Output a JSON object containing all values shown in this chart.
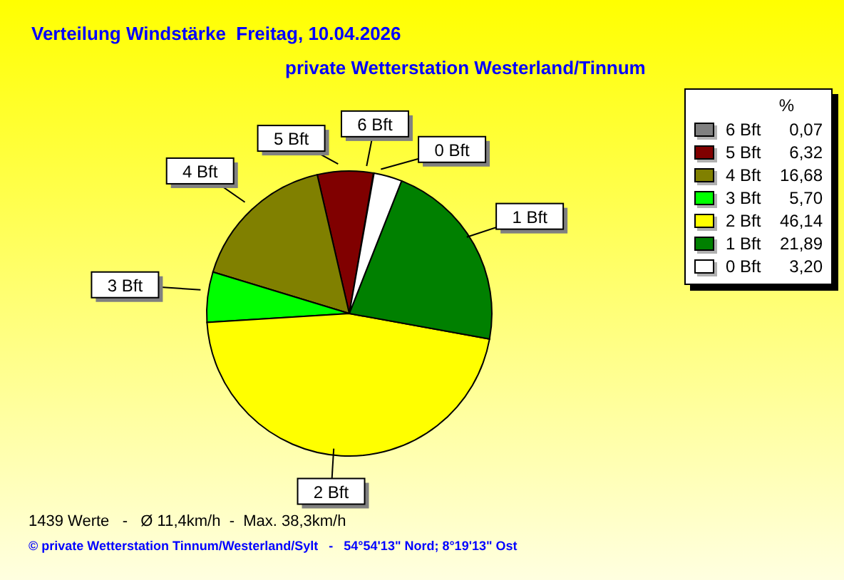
{
  "chart_data": {
    "type": "pie",
    "title": "Verteilung Windstärke  Freitag, 10.04.2026",
    "subtitle": "private Wetterstation Westerland/Tinnum",
    "legend_title": "%",
    "legend": "top right",
    "categories": [
      "6 Bft",
      "5 Bft",
      "4 Bft",
      "3 Bft",
      "2 Bft",
      "1 Bft",
      "0 Bft"
    ],
    "values": [
      0.07,
      6.32,
      16.68,
      5.7,
      46.14,
      21.89,
      3.2
    ],
    "value_labels": [
      "0,07",
      "6,32",
      "16,68",
      "5,70",
      "46,14",
      "21,89",
      "3,20"
    ],
    "colors": [
      "#808080",
      "#800000",
      "#808000",
      "#00ff00",
      "#ffff00",
      "#008000",
      "#ffffff"
    ],
    "annotations": [
      "1439 Werte   -   Ø 11,4km/h  -  Max. 38,3km/h",
      "© private Wetterstation Tinnum/Westerland/Sylt   -   54°54'13\" Nord; 8°19'13\" Ost"
    ]
  }
}
